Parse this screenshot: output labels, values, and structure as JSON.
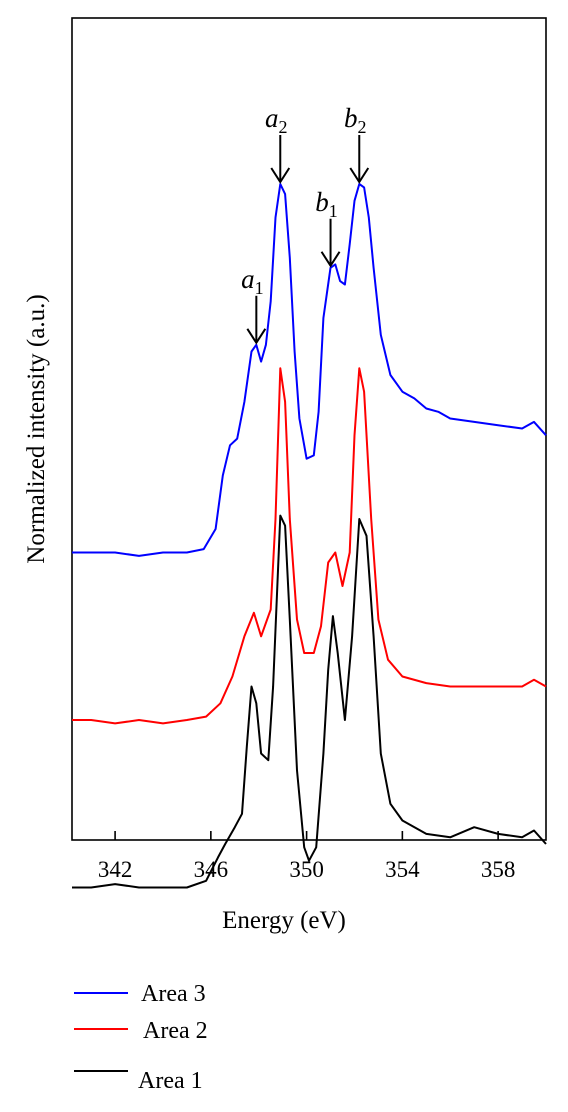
{
  "chart_data": {
    "type": "line",
    "xlabel": "Energy (eV)",
    "ylabel": "Normalized intensity (a.u.)",
    "xlim": [
      340.2,
      360
    ],
    "x_ticks": [
      342,
      346,
      350,
      354,
      358
    ],
    "y_ticks_shown": false,
    "grid": false,
    "legend_position": "below-left",
    "series": [
      {
        "name": "Area 3",
        "color": "#0000ff",
        "points": [
          [
            340.2,
            1.5
          ],
          [
            341,
            1.5
          ],
          [
            342,
            1.5
          ],
          [
            343,
            1.49
          ],
          [
            344,
            1.5
          ],
          [
            345,
            1.5
          ],
          [
            345.7,
            1.51
          ],
          [
            346.2,
            1.57
          ],
          [
            346.5,
            1.73
          ],
          [
            346.8,
            1.82
          ],
          [
            347.1,
            1.84
          ],
          [
            347.4,
            1.95
          ],
          [
            347.7,
            2.1
          ],
          [
            347.9,
            2.12
          ],
          [
            348.1,
            2.07
          ],
          [
            348.3,
            2.12
          ],
          [
            348.5,
            2.25
          ],
          [
            348.7,
            2.5
          ],
          [
            348.9,
            2.6
          ],
          [
            349.1,
            2.57
          ],
          [
            349.3,
            2.38
          ],
          [
            349.5,
            2.1
          ],
          [
            349.7,
            1.9
          ],
          [
            350.0,
            1.78
          ],
          [
            350.3,
            1.79
          ],
          [
            350.5,
            1.92
          ],
          [
            350.7,
            2.2
          ],
          [
            351.0,
            2.35
          ],
          [
            351.2,
            2.36
          ],
          [
            351.4,
            2.31
          ],
          [
            351.6,
            2.3
          ],
          [
            351.8,
            2.42
          ],
          [
            352.0,
            2.55
          ],
          [
            352.2,
            2.6
          ],
          [
            352.4,
            2.59
          ],
          [
            352.6,
            2.5
          ],
          [
            352.8,
            2.35
          ],
          [
            353.1,
            2.15
          ],
          [
            353.5,
            2.03
          ],
          [
            354,
            1.98
          ],
          [
            354.5,
            1.96
          ],
          [
            355,
            1.93
          ],
          [
            355.5,
            1.92
          ],
          [
            356,
            1.9
          ],
          [
            357,
            1.89
          ],
          [
            358,
            1.88
          ],
          [
            359,
            1.87
          ],
          [
            359.5,
            1.89
          ],
          [
            360,
            1.85
          ]
        ]
      },
      {
        "name": "Area 2",
        "color": "#ff0000",
        "points": [
          [
            340.2,
            1.0
          ],
          [
            341,
            1.0
          ],
          [
            342,
            0.99
          ],
          [
            343,
            1.0
          ],
          [
            344,
            0.99
          ],
          [
            345,
            1.0
          ],
          [
            345.8,
            1.01
          ],
          [
            346.4,
            1.05
          ],
          [
            346.9,
            1.13
          ],
          [
            347.4,
            1.25
          ],
          [
            347.8,
            1.32
          ],
          [
            348.1,
            1.25
          ],
          [
            348.5,
            1.33
          ],
          [
            348.7,
            1.6
          ],
          [
            348.9,
            2.05
          ],
          [
            349.1,
            1.95
          ],
          [
            349.3,
            1.6
          ],
          [
            349.6,
            1.3
          ],
          [
            349.9,
            1.2
          ],
          [
            350.3,
            1.2
          ],
          [
            350.6,
            1.28
          ],
          [
            350.9,
            1.47
          ],
          [
            351.2,
            1.5
          ],
          [
            351.5,
            1.4
          ],
          [
            351.8,
            1.5
          ],
          [
            352.0,
            1.85
          ],
          [
            352.2,
            2.05
          ],
          [
            352.4,
            1.98
          ],
          [
            352.7,
            1.6
          ],
          [
            353.0,
            1.3
          ],
          [
            353.4,
            1.18
          ],
          [
            354,
            1.13
          ],
          [
            355,
            1.11
          ],
          [
            356,
            1.1
          ],
          [
            357,
            1.1
          ],
          [
            358,
            1.1
          ],
          [
            359,
            1.1
          ],
          [
            359.5,
            1.12
          ],
          [
            360,
            1.1
          ]
        ]
      },
      {
        "name": "Area 1",
        "color": "#000000",
        "points": [
          [
            340.2,
            0.5
          ],
          [
            341,
            0.5
          ],
          [
            342,
            0.51
          ],
          [
            343,
            0.5
          ],
          [
            344,
            0.5
          ],
          [
            345,
            0.5
          ],
          [
            345.8,
            0.52
          ],
          [
            346.3,
            0.59
          ],
          [
            346.6,
            0.63
          ],
          [
            347.0,
            0.68
          ],
          [
            347.3,
            0.72
          ],
          [
            347.5,
            0.92
          ],
          [
            347.7,
            1.1
          ],
          [
            347.9,
            1.05
          ],
          [
            348.1,
            0.9
          ],
          [
            348.4,
            0.88
          ],
          [
            348.6,
            1.1
          ],
          [
            348.9,
            1.61
          ],
          [
            349.1,
            1.58
          ],
          [
            349.3,
            1.3
          ],
          [
            349.6,
            0.85
          ],
          [
            349.9,
            0.62
          ],
          [
            350.1,
            0.58
          ],
          [
            350.4,
            0.62
          ],
          [
            350.7,
            0.9
          ],
          [
            350.9,
            1.15
          ],
          [
            351.1,
            1.31
          ],
          [
            351.3,
            1.2
          ],
          [
            351.6,
            1.0
          ],
          [
            351.9,
            1.25
          ],
          [
            352.2,
            1.6
          ],
          [
            352.5,
            1.55
          ],
          [
            352.8,
            1.25
          ],
          [
            353.1,
            0.9
          ],
          [
            353.5,
            0.75
          ],
          [
            354,
            0.7
          ],
          [
            355,
            0.66
          ],
          [
            356,
            0.65
          ],
          [
            357,
            0.68
          ],
          [
            358,
            0.66
          ],
          [
            359,
            0.65
          ],
          [
            359.5,
            0.67
          ],
          [
            360,
            0.63
          ]
        ]
      }
    ],
    "annotations": [
      {
        "label": "a",
        "sub": "1",
        "x": 347.9,
        "y": 2.12
      },
      {
        "label": "a",
        "sub": "2",
        "x": 348.9,
        "y": 2.6
      },
      {
        "label": "b",
        "sub": "1",
        "x": 351.0,
        "y": 2.35
      },
      {
        "label": "b",
        "sub": "2",
        "x": 352.2,
        "y": 2.6
      }
    ]
  }
}
